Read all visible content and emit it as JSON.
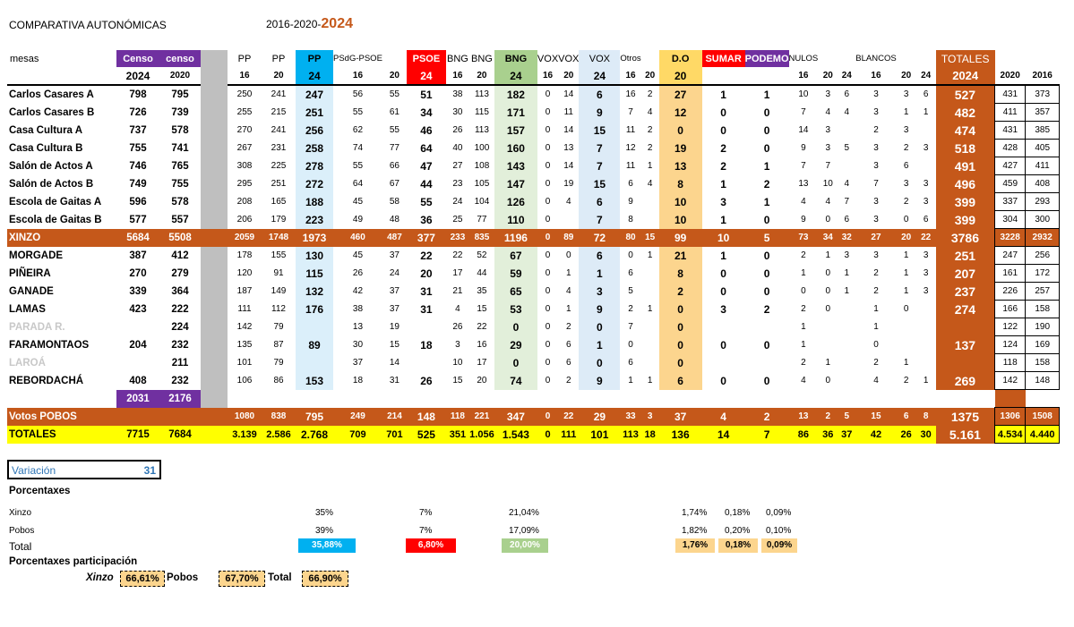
{
  "title": "COMPARATIVA  AUTONÓMICAS",
  "years_prefix": "2016-2020-",
  "years_current": "2024",
  "header_groups": {
    "mesas": "mesas",
    "censo_a": "Censo",
    "censo_b": "censo",
    "pp16": "PP",
    "pp20": "PP",
    "pp24": "PP",
    "psoe_a": "PSdG-PSOE",
    "psoe24": "PSOE",
    "bng16": "BNG",
    "bng20": "BNG",
    "bng24": "BNG",
    "vox_a": "VOX",
    "vox_b": "VOX",
    "vox24": "VOX",
    "otros": "Otros",
    "do": "D.O",
    "sumar": "SUMAR",
    "podemos": "PODEMO",
    "nulos": "NULOS",
    "blancos": "BLANCOS",
    "totales": "TOTALES"
  },
  "header_years": [
    "",
    "2024",
    "2020",
    "16",
    "20",
    "24",
    "16",
    "20",
    "24",
    "16",
    "20",
    "24",
    "16",
    "20",
    "24",
    "16",
    "20",
    "20",
    "",
    "",
    "16",
    "20",
    "24",
    "16",
    "20",
    "24",
    "2024",
    "2020",
    "2016"
  ],
  "rows": [
    {
      "name": "Carlos Casares A",
      "c": [
        "798",
        "795",
        "250",
        "241",
        "247",
        "56",
        "55",
        "51",
        "38",
        "113",
        "182",
        "0",
        "14",
        "6",
        "16",
        "2",
        "27",
        "1",
        "1",
        "10",
        "3",
        "6",
        "3",
        "3",
        "6",
        "527",
        "431",
        "373"
      ]
    },
    {
      "name": "Carlos Casares B",
      "c": [
        "726",
        "739",
        "255",
        "215",
        "251",
        "55",
        "61",
        "34",
        "30",
        "115",
        "171",
        "0",
        "11",
        "9",
        "7",
        "4",
        "12",
        "0",
        "0",
        "7",
        "4",
        "4",
        "3",
        "1",
        "1",
        "482",
        "411",
        "357"
      ]
    },
    {
      "name": "Casa Cultura A",
      "c": [
        "737",
        "578",
        "270",
        "241",
        "256",
        "62",
        "55",
        "46",
        "26",
        "113",
        "157",
        "0",
        "14",
        "15",
        "11",
        "2",
        "0",
        "0",
        "0",
        "14",
        "3",
        "",
        "2",
        "3",
        "",
        "474",
        "431",
        "385"
      ]
    },
    {
      "name": "Casa Cultura B",
      "c": [
        "755",
        "741",
        "267",
        "231",
        "258",
        "74",
        "77",
        "64",
        "40",
        "100",
        "160",
        "0",
        "13",
        "7",
        "12",
        "2",
        "19",
        "2",
        "0",
        "9",
        "3",
        "5",
        "3",
        "2",
        "3",
        "518",
        "428",
        "405"
      ]
    },
    {
      "name": "Salón de Actos  A",
      "c": [
        "746",
        "765",
        "308",
        "225",
        "278",
        "55",
        "66",
        "47",
        "27",
        "108",
        "143",
        "0",
        "14",
        "7",
        "11",
        "1",
        "13",
        "2",
        "1",
        "7",
        "7",
        "",
        "3",
        "6",
        "",
        "491",
        "427",
        "411"
      ]
    },
    {
      "name": "Salón de Actos  B",
      "c": [
        "749",
        "755",
        "295",
        "251",
        "272",
        "64",
        "67",
        "44",
        "23",
        "105",
        "147",
        "0",
        "19",
        "15",
        "6",
        "4",
        "8",
        "1",
        "2",
        "13",
        "10",
        "4",
        "7",
        "3",
        "3",
        "496",
        "459",
        "408"
      ]
    },
    {
      "name": "Escola de Gaitas  A",
      "c": [
        "596",
        "578",
        "208",
        "165",
        "188",
        "45",
        "58",
        "55",
        "24",
        "104",
        "126",
        "0",
        "4",
        "6",
        "9",
        "",
        "10",
        "3",
        "1",
        "4",
        "4",
        "7",
        "3",
        "2",
        "3",
        "399",
        "337",
        "293"
      ]
    },
    {
      "name": "Escola de Gaitas  B",
      "c": [
        "577",
        "557",
        "206",
        "179",
        "223",
        "49",
        "48",
        "36",
        "25",
        "77",
        "110",
        "0",
        "",
        "7",
        "8",
        "",
        "10",
        "1",
        "0",
        "9",
        "0",
        "6",
        "3",
        "0",
        "6",
        "399",
        "304",
        "300"
      ]
    },
    {
      "name": "XINZO",
      "c": [
        "5684",
        "5508",
        "2059",
        "1748",
        "1973",
        "460",
        "487",
        "377",
        "233",
        "835",
        "1196",
        "0",
        "89",
        "72",
        "80",
        "15",
        "99",
        "10",
        "5",
        "73",
        "34",
        "32",
        "27",
        "20",
        "22",
        "3786",
        "3228",
        "2932"
      ],
      "cls": "row-xinzo"
    },
    {
      "name": "MORGADE",
      "c": [
        "387",
        "412",
        "178",
        "155",
        "130",
        "45",
        "37",
        "22",
        "22",
        "52",
        "67",
        "0",
        "0",
        "6",
        "0",
        "1",
        "21",
        "1",
        "0",
        "2",
        "1",
        "3",
        "3",
        "1",
        "3",
        "251",
        "247",
        "256"
      ]
    },
    {
      "name": "PIÑEIRA",
      "c": [
        "270",
        "279",
        "120",
        "91",
        "115",
        "26",
        "24",
        "20",
        "17",
        "44",
        "59",
        "0",
        "1",
        "1",
        "6",
        "",
        "8",
        "0",
        "0",
        "1",
        "0",
        "1",
        "2",
        "1",
        "3",
        "207",
        "161",
        "172"
      ]
    },
    {
      "name": "GANADE",
      "c": [
        "339",
        "364",
        "187",
        "149",
        "132",
        "42",
        "37",
        "31",
        "21",
        "35",
        "65",
        "0",
        "4",
        "3",
        "5",
        "",
        "2",
        "0",
        "0",
        "0",
        "0",
        "1",
        "2",
        "1",
        "3",
        "237",
        "226",
        "257"
      ]
    },
    {
      "name": "LAMAS",
      "c": [
        "423",
        "222",
        "111",
        "112",
        "176",
        "38",
        "37",
        "31",
        "4",
        "15",
        "53",
        "0",
        "1",
        "9",
        "2",
        "1",
        "0",
        "3",
        "2",
        "2",
        "0",
        "",
        "1",
        "0",
        "",
        "274",
        "166",
        "158"
      ]
    },
    {
      "name": "PARADA R.",
      "c": [
        "",
        "224",
        "142",
        "79",
        "",
        "13",
        "19",
        "",
        "26",
        "22",
        "0",
        "0",
        "2",
        "0",
        "7",
        "",
        "0",
        "",
        "",
        "1",
        "",
        "",
        "1",
        "",
        "",
        "",
        "122",
        "190"
      ],
      "trace": true
    },
    {
      "name": "FARAMONTAOS",
      "c": [
        "204",
        "232",
        "135",
        "87",
        "89",
        "30",
        "15",
        "18",
        "3",
        "16",
        "29",
        "0",
        "6",
        "1",
        "0",
        "",
        "0",
        "0",
        "0",
        "1",
        "",
        "",
        "0",
        "",
        "",
        "137",
        "124",
        "169"
      ]
    },
    {
      "name": "LAROÁ",
      "c": [
        "",
        "211",
        "101",
        "79",
        "",
        "37",
        "14",
        "",
        "10",
        "17",
        "0",
        "0",
        "6",
        "0",
        "6",
        "",
        "0",
        "",
        "",
        "2",
        "1",
        "",
        "2",
        "1",
        "",
        "",
        "118",
        "158"
      ],
      "trace": true
    },
    {
      "name": "REBORDACHÁ",
      "c": [
        "408",
        "232",
        "106",
        "86",
        "153",
        "18",
        "31",
        "26",
        "15",
        "20",
        "74",
        "0",
        "2",
        "9",
        "1",
        "1",
        "6",
        "0",
        "0",
        "4",
        "0",
        "",
        "4",
        "2",
        "1",
        "269",
        "142",
        "148"
      ]
    }
  ],
  "pobos_censo": [
    "2031",
    "2176"
  ],
  "votos_pobos": {
    "name": "Votos  POBOS",
    "c": [
      "",
      "",
      "1080",
      "838",
      "795",
      "249",
      "214",
      "148",
      "118",
      "221",
      "347",
      "0",
      "22",
      "29",
      "33",
      "3",
      "37",
      "4",
      "2",
      "13",
      "2",
      "5",
      "15",
      "6",
      "8",
      "1375",
      "1306",
      "1508"
    ]
  },
  "totales": {
    "name": "TOTALES",
    "c": [
      "7715",
      "7684",
      "3.139",
      "2.586",
      "2.768",
      "709",
      "701",
      "525",
      "351",
      "1.056",
      "1.543",
      "0",
      "111",
      "101",
      "113",
      "18",
      "136",
      "14",
      "7",
      "86",
      "36",
      "37",
      "42",
      "26",
      "30",
      "5.161",
      "4.534",
      "4.440"
    ]
  },
  "variacion": {
    "label": "Variación",
    "value": "31"
  },
  "porcentaxes": {
    "title": "Porcentaxes",
    "xinzo_label": "Xinzo",
    "pobos_label": "Pobos",
    "total_label": "Total",
    "xinzo": {
      "pp": "35%",
      "psoe": "7%",
      "bng": "21,04%",
      "do": "1,74%",
      "sumar": "0,18%",
      "podemos": "0,09%"
    },
    "pobos": {
      "pp": "39%",
      "psoe": "7%",
      "bng": "17,09%",
      "do": "1,82%",
      "sumar": "0,20%",
      "podemos": "0,10%"
    },
    "total": {
      "pp": "35,88%",
      "psoe": "6,80%",
      "bng": "20,00%",
      "do": "1,76%",
      "sumar": "0,18%",
      "podemos": "0,09%"
    }
  },
  "participacion": {
    "title": "Porcentaxes participación",
    "xinzo_label": "Xinzo",
    "xinzo": "66,61%",
    "pobos_label": "Pobos",
    "pobos": "67,70%",
    "total_label": "Total",
    "total": "66,90%"
  },
  "colors": {
    "orange": "#c5581a",
    "pp": "#00b0f0",
    "psoe": "#ff0000",
    "bng": "#a9d08e",
    "do": "#ffd966",
    "podemos": "#7030a0",
    "totales": "#ffff00"
  }
}
